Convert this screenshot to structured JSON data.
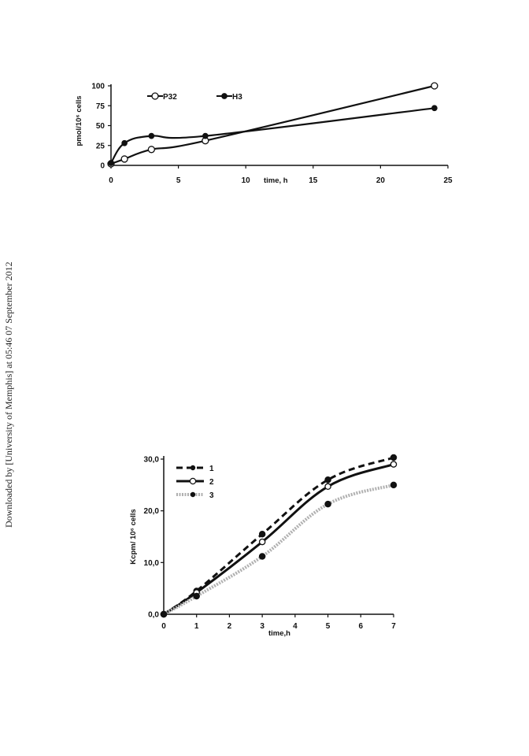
{
  "side_note": "Downloaded by [University of Memphis] at 05:46 07 September 2012",
  "chart_data": [
    {
      "type": "line",
      "title": "",
      "xlabel": "time, h",
      "ylabel": "pmol/10⁶ cells",
      "xlim": [
        0,
        25
      ],
      "ylim": [
        0,
        100
      ],
      "xticks": [
        "0",
        "5",
        "10",
        "15",
        "20",
        "25"
      ],
      "yticks": [
        "0",
        "25",
        "50",
        "75",
        "100"
      ],
      "grid": false,
      "legend": "top-left",
      "series": [
        {
          "name": "P32",
          "marker": "open-circle",
          "color": "#111111",
          "x": [
            0,
            1,
            3,
            7,
            24
          ],
          "y": [
            2,
            8,
            20,
            31,
            100
          ]
        },
        {
          "name": "H3",
          "marker": "filled-circle",
          "color": "#111111",
          "x": [
            0,
            1,
            3,
            7,
            24
          ],
          "y": [
            3,
            28,
            37,
            37,
            72
          ]
        }
      ]
    },
    {
      "type": "line",
      "title": "",
      "xlabel": "time,h",
      "ylabel": "Kcpm/ 10⁶ cells",
      "xlim": [
        0,
        7
      ],
      "ylim": [
        0,
        30
      ],
      "xticks": [
        "0",
        "1",
        "2",
        "3",
        "4",
        "5",
        "6",
        "7"
      ],
      "yticks": [
        "0,0",
        "10,0",
        "20,0",
        "30,0"
      ],
      "grid": false,
      "legend": "top-left",
      "series": [
        {
          "name": "1",
          "style": "dashed",
          "marker": "filled-circle",
          "color": "#111111",
          "x": [
            0,
            1,
            3,
            5,
            7
          ],
          "y": [
            0,
            4.5,
            15.5,
            26,
            30.3
          ]
        },
        {
          "name": "2",
          "style": "solid",
          "marker": "open-circle",
          "color": "#111111",
          "x": [
            0,
            1,
            3,
            5,
            7
          ],
          "y": [
            0,
            4.2,
            14,
            24.7,
            29
          ]
        },
        {
          "name": "3",
          "style": "dotted-gray",
          "marker": "filled-circle",
          "color": "#aaaaaa",
          "x": [
            0,
            1,
            3,
            5,
            7
          ],
          "y": [
            0,
            3.5,
            11.2,
            21.3,
            25
          ]
        }
      ]
    }
  ]
}
